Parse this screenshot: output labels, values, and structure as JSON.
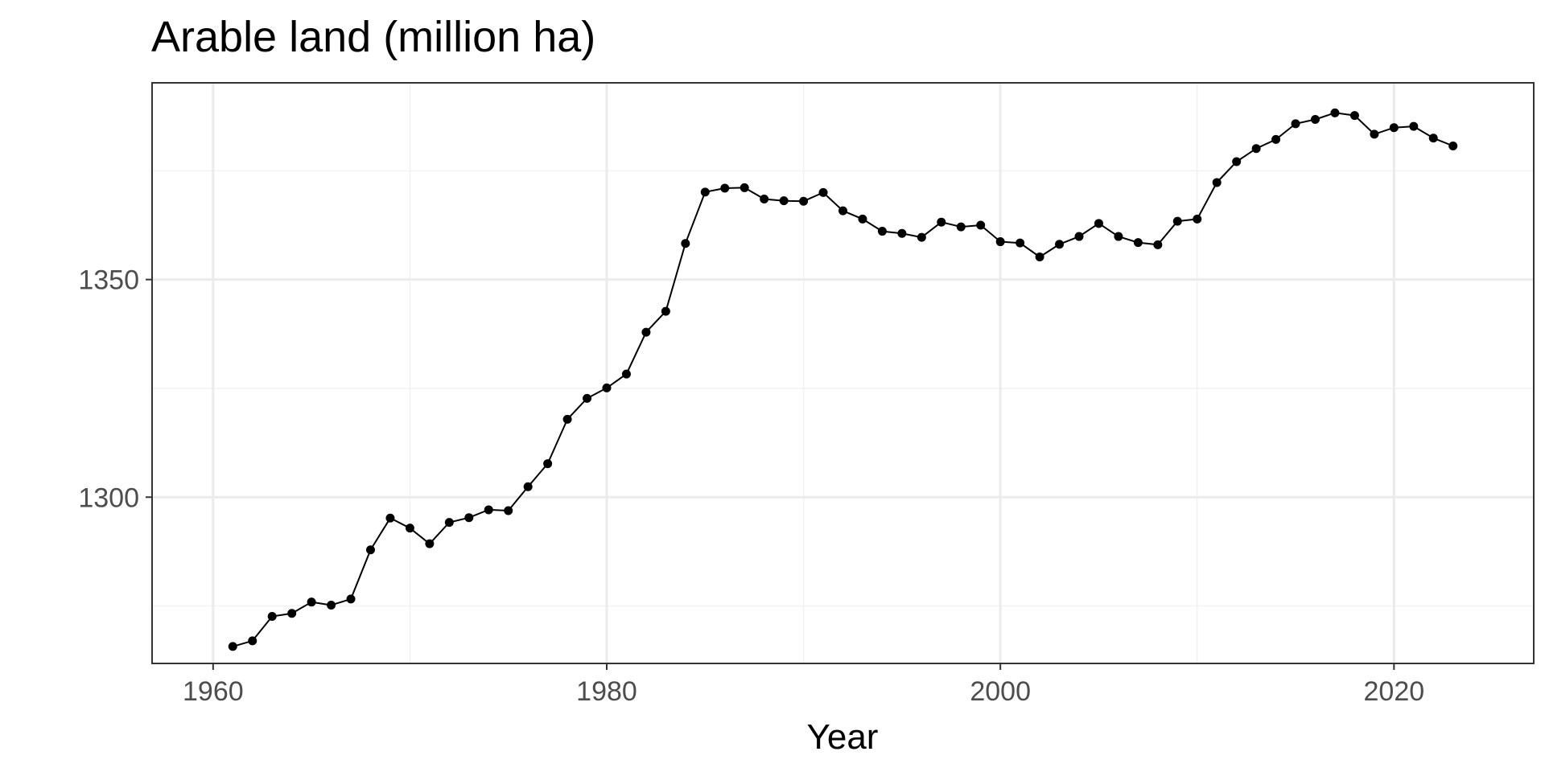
{
  "chart_data": {
    "type": "line",
    "title": "Arable land (million ha)",
    "xlabel": "Year",
    "ylabel": "",
    "x": [
      1961,
      1962,
      1963,
      1964,
      1965,
      1966,
      1967,
      1968,
      1969,
      1970,
      1971,
      1972,
      1973,
      1974,
      1975,
      1976,
      1977,
      1978,
      1979,
      1980,
      1981,
      1982,
      1983,
      1984,
      1985,
      1986,
      1987,
      1988,
      1989,
      1990,
      1991,
      1992,
      1993,
      1994,
      1995,
      1996,
      1997,
      1998,
      1999,
      2000,
      2001,
      2002,
      2003,
      2004,
      2005,
      2006,
      2007,
      2008,
      2009,
      2010,
      2011,
      2012,
      2013,
      2014,
      2015,
      2016,
      2017,
      2018,
      2019,
      2020,
      2021,
      2022,
      2023
    ],
    "series": [
      {
        "values": [
          1265.7,
          1267.0,
          1272.6,
          1273.3,
          1275.9,
          1275.2,
          1276.6,
          1287.9,
          1295.2,
          1292.9,
          1289.3,
          1294.2,
          1295.3,
          1297.1,
          1296.9,
          1302.4,
          1307.7,
          1317.9,
          1322.7,
          1325.1,
          1328.3,
          1337.9,
          1342.7,
          1358.3,
          1370.1,
          1371.0,
          1371.1,
          1368.5,
          1368.1,
          1368.0,
          1370.0,
          1365.8,
          1363.9,
          1361.1,
          1360.6,
          1359.7,
          1363.2,
          1362.1,
          1362.5,
          1358.7,
          1358.4,
          1355.2,
          1358.1,
          1359.9,
          1362.9,
          1359.9,
          1358.5,
          1358.0,
          1363.4,
          1363.9,
          1372.3,
          1377.1,
          1380.1,
          1382.2,
          1385.8,
          1386.8,
          1388.3,
          1387.7,
          1383.4,
          1384.9,
          1385.2,
          1382.5,
          1380.7
        ]
      }
    ],
    "xlim": [
      1956.9,
      2027.1
    ],
    "ylim": [
      1261.8,
      1395.2
    ],
    "x_ticks": [
      1960,
      1980,
      2000,
      2020
    ],
    "x_tick_labels": [
      "1960",
      "1980",
      "2000",
      "2020"
    ],
    "x_minor_ticks": [
      1970,
      1990,
      2010
    ],
    "y_ticks": [
      1300,
      1350
    ],
    "y_tick_labels": [
      "1300",
      "1350"
    ],
    "y_minor_ticks": [
      1275,
      1325,
      1375
    ],
    "grid": true,
    "legend": "none",
    "colors": {
      "line": "#000000",
      "points": "#000000",
      "grid_major": "#ebebeb",
      "grid_minor": "#f2f2f2",
      "panel_border": "#333333",
      "tick_text": "#4d4d4d"
    }
  }
}
